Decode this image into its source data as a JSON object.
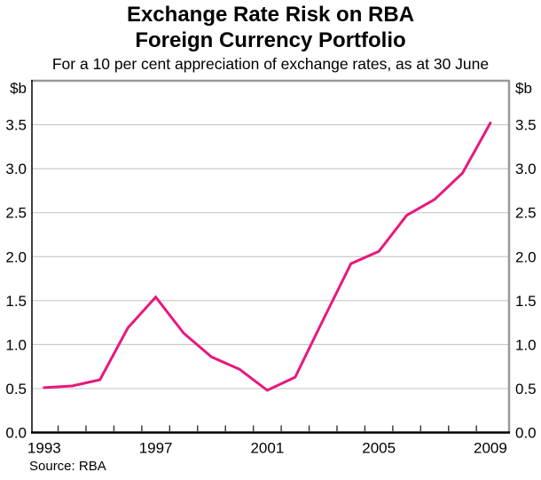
{
  "chart_data": {
    "type": "line",
    "title": "Exchange Rate Risk on RBA Foreign Currency Portfolio",
    "title_lines": [
      "Exchange Rate Risk on RBA",
      "Foreign Currency Portfolio"
    ],
    "subtitle": "For a 10 per cent appreciation of exchange rates, as at 30 June",
    "source": "Source: RBA",
    "unit_label": "$b",
    "x": [
      1993,
      1994,
      1995,
      1996,
      1997,
      1998,
      1999,
      2000,
      2001,
      2002,
      2003,
      2004,
      2005,
      2006,
      2007,
      2008,
      2009
    ],
    "series": [
      {
        "name": "Exchange rate risk on RBA foreign currency portfolio",
        "values": [
          0.51,
          0.53,
          0.6,
          1.19,
          1.54,
          1.13,
          0.86,
          0.72,
          0.48,
          0.63,
          1.28,
          1.92,
          2.06,
          2.47,
          2.65,
          2.95,
          3.52
        ],
        "color": "#e8187e"
      }
    ],
    "xlabel": "",
    "ylabel": "$b",
    "xlim": [
      1992.56,
      2009.67
    ],
    "ylim": [
      0,
      4
    ],
    "yticks": [
      0.0,
      0.5,
      1.0,
      1.5,
      2.0,
      2.5,
      3.0,
      3.5
    ],
    "xtick_labels": [
      1993,
      1997,
      2001,
      2005,
      2009
    ],
    "grid": "horizontal-on",
    "legend_position": "none",
    "colors": {
      "line": "#e8187e",
      "grid": "#c9c9c9",
      "frame": "#999999",
      "axis": "#000000"
    }
  }
}
